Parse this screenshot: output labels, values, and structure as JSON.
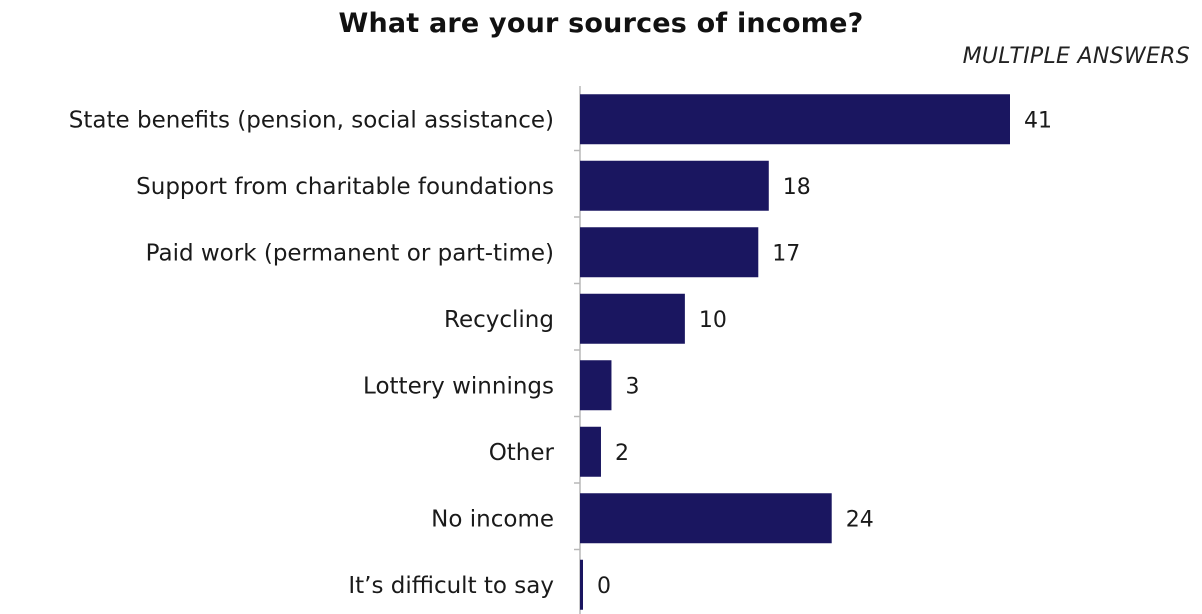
{
  "chart_data": {
    "type": "bar",
    "orientation": "horizontal",
    "title": "What are your sources of income?",
    "subtitle": "MULTIPLE ANSWERS",
    "categories": [
      "State benefits (pension, social assistance)",
      "Support from charitable foundations",
      "Paid work (permanent or part-time)",
      "Recycling",
      "Lottery winnings",
      "Other",
      "No income",
      "It’s difficult to say"
    ],
    "values": [
      41,
      18,
      17,
      10,
      3,
      2,
      24,
      0
    ],
    "xlim": [
      0,
      41
    ],
    "grid": false,
    "legend": "none",
    "bar_color": "#1a1660"
  }
}
